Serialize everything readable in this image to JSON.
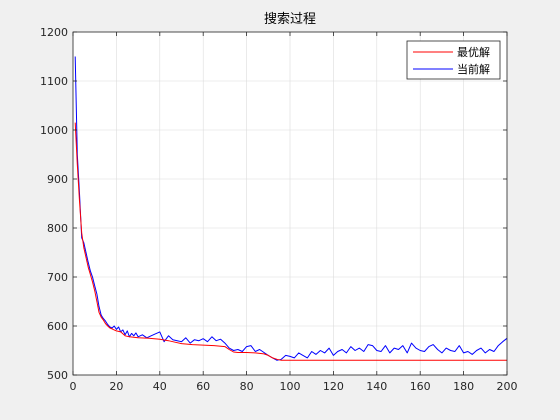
{
  "chart_data": {
    "type": "line",
    "title": "搜索过程",
    "xlabel": "",
    "ylabel": "",
    "xlim": [
      0,
      200
    ],
    "ylim": [
      500,
      1200
    ],
    "xticks": [
      0,
      20,
      40,
      60,
      80,
      100,
      120,
      140,
      160,
      180,
      200
    ],
    "yticks": [
      500,
      600,
      700,
      800,
      900,
      1000,
      1100,
      1200
    ],
    "grid": true,
    "legend_position": "top-right",
    "series": [
      {
        "name": "最优解",
        "color": "#ff0000",
        "x": [
          1,
          2,
          3,
          4,
          5,
          6,
          7,
          8,
          9,
          10,
          11,
          12,
          13,
          14,
          15,
          16,
          17,
          18,
          19,
          20,
          22,
          24,
          26,
          30,
          35,
          40,
          44,
          47,
          50,
          55,
          60,
          65,
          70,
          72,
          74,
          76,
          80,
          84,
          88,
          90,
          92,
          94,
          96,
          100,
          120,
          140,
          160,
          180,
          200
        ],
        "y": [
          1015,
          930,
          855,
          790,
          760,
          740,
          720,
          705,
          690,
          672,
          650,
          628,
          618,
          612,
          605,
          600,
          596,
          594,
          592,
          590,
          588,
          580,
          578,
          576,
          575,
          573,
          570,
          567,
          564,
          562,
          561,
          560,
          558,
          552,
          547,
          546,
          546,
          545,
          543,
          540,
          535,
          532,
          530,
          530,
          530,
          530,
          530,
          530,
          530
        ]
      },
      {
        "name": "当前解",
        "color": "#0000ff",
        "x": [
          1,
          2,
          3,
          4,
          5,
          6,
          7,
          8,
          9,
          10,
          11,
          12,
          13,
          14,
          15,
          16,
          17,
          18,
          19,
          20,
          21,
          22,
          23,
          24,
          25,
          26,
          27,
          28,
          29,
          30,
          32,
          34,
          36,
          38,
          40,
          42,
          44,
          46,
          48,
          50,
          52,
          54,
          56,
          58,
          60,
          62,
          64,
          66,
          68,
          70,
          72,
          74,
          76,
          78,
          80,
          82,
          84,
          86,
          88,
          90,
          92,
          94,
          96,
          98,
          100,
          102,
          104,
          106,
          108,
          110,
          112,
          114,
          116,
          118,
          120,
          122,
          124,
          126,
          128,
          130,
          132,
          134,
          136,
          138,
          140,
          142,
          144,
          146,
          148,
          150,
          152,
          154,
          156,
          158,
          160,
          162,
          164,
          166,
          168,
          170,
          172,
          174,
          176,
          178,
          180,
          182,
          184,
          186,
          188,
          190,
          192,
          194,
          196,
          198,
          200
        ],
        "y": [
          1150,
          950,
          870,
          780,
          770,
          750,
          730,
          712,
          700,
          682,
          665,
          640,
          622,
          615,
          610,
          603,
          598,
          596,
          600,
          593,
          598,
          588,
          592,
          582,
          590,
          578,
          585,
          580,
          586,
          578,
          582,
          576,
          580,
          584,
          588,
          568,
          580,
          572,
          570,
          568,
          576,
          565,
          572,
          570,
          574,
          568,
          578,
          570,
          573,
          565,
          555,
          550,
          552,
          548,
          558,
          560,
          548,
          552,
          546,
          540,
          535,
          530,
          532,
          540,
          538,
          535,
          545,
          540,
          535,
          548,
          542,
          550,
          545,
          555,
          540,
          548,
          552,
          545,
          558,
          550,
          555,
          548,
          562,
          560,
          550,
          548,
          560,
          545,
          555,
          552,
          560,
          545,
          565,
          555,
          550,
          548,
          558,
          562,
          552,
          545,
          555,
          550,
          548,
          560,
          545,
          548,
          542,
          550,
          555,
          545,
          552,
          548,
          560,
          568,
          575
        ]
      }
    ]
  }
}
